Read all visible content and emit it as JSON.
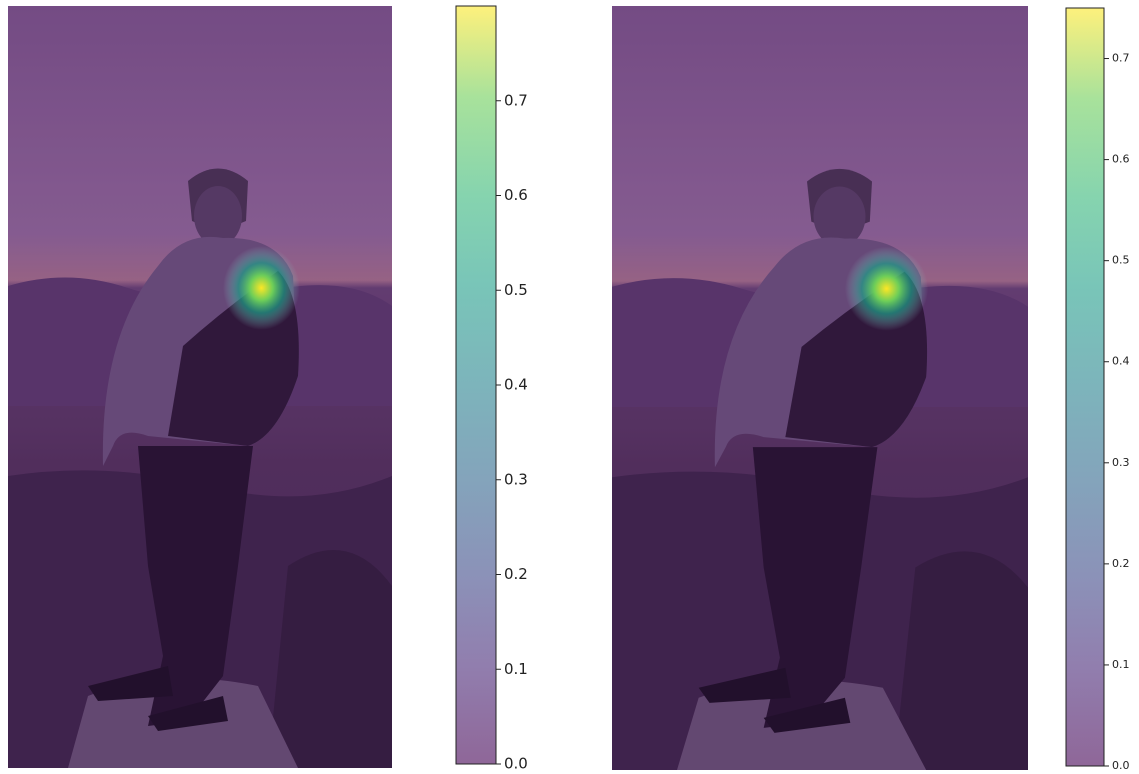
{
  "chart_data": [
    {
      "type": "heatmap",
      "ylim": [
        0,
        0.8
      ],
      "yticks": [
        {
          "value": 0,
          "label": "0.0"
        },
        0.1,
        0.2,
        0.3,
        0.4,
        0.5,
        0.6,
        0.7
      ]
    },
    {
      "type": "heatmap",
      "ylim": [
        0,
        0.75
      ],
      "yticks": [
        {
          "value": 0,
          "label": "0.0"
        },
        0.1,
        0.2,
        0.3,
        0.4,
        0.5,
        0.6,
        0.7
      ]
    }
  ]
}
